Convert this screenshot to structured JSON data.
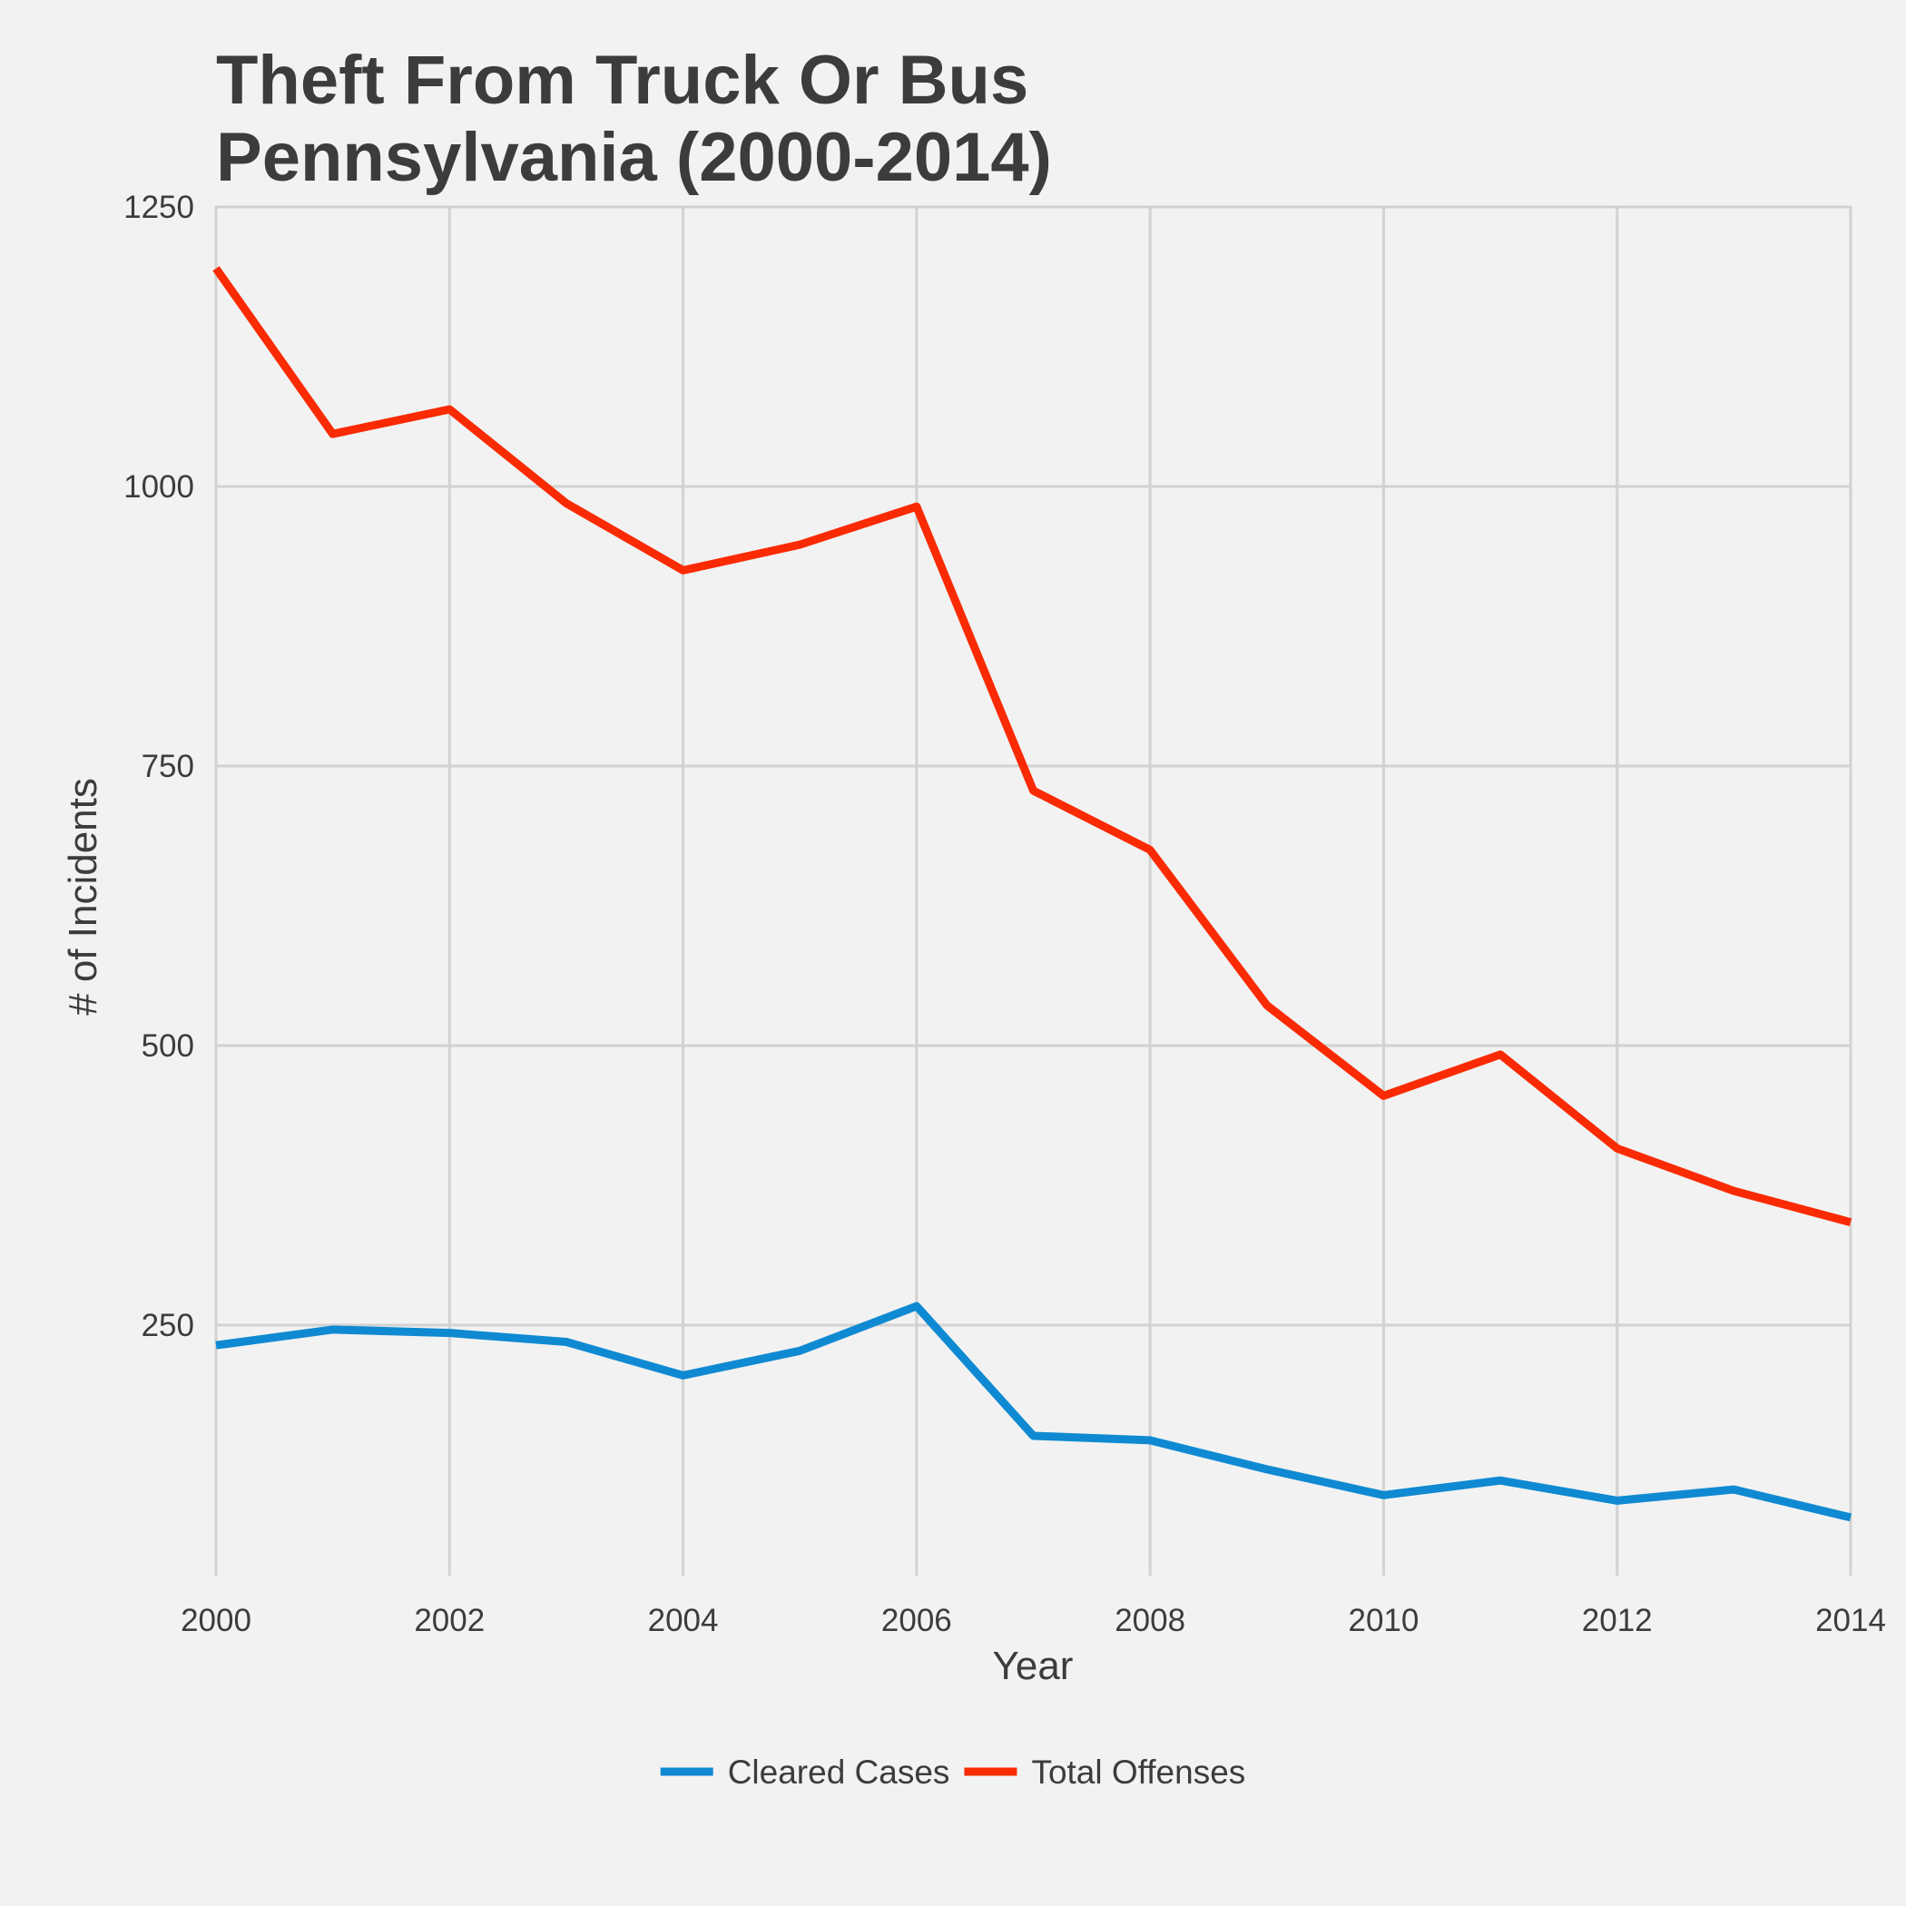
{
  "chart_data": {
    "type": "line",
    "title": [
      "Theft From Truck Or Bus",
      "Pennsylvania (2000-2014)"
    ],
    "xlabel": "Year",
    "ylabel": "# of Incidents",
    "xlim": [
      2000,
      2014
    ],
    "ylim": [
      0,
      1250
    ],
    "x_ticks": [
      2000,
      2002,
      2004,
      2006,
      2008,
      2010,
      2012,
      2014
    ],
    "y_ticks": [
      250,
      500,
      750,
      1000,
      1250
    ],
    "grid": true,
    "legend_position": "bottom",
    "x": [
      2000,
      2001,
      2002,
      2003,
      2004,
      2005,
      2006,
      2007,
      2008,
      2009,
      2010,
      2011,
      2012,
      2013,
      2014
    ],
    "series": [
      {
        "name": "Cleared Cases",
        "color": "#0f8ad2",
        "values": [
          232,
          246,
          243,
          235,
          205,
          227,
          267,
          151,
          147,
          121,
          98,
          111,
          93,
          103,
          78
        ]
      },
      {
        "name": "Total Offenses",
        "color": "#fa2a02",
        "values": [
          1195,
          1047,
          1069,
          985,
          925,
          948,
          982,
          728,
          675,
          536,
          455,
          492,
          408,
          370,
          342
        ]
      }
    ]
  }
}
